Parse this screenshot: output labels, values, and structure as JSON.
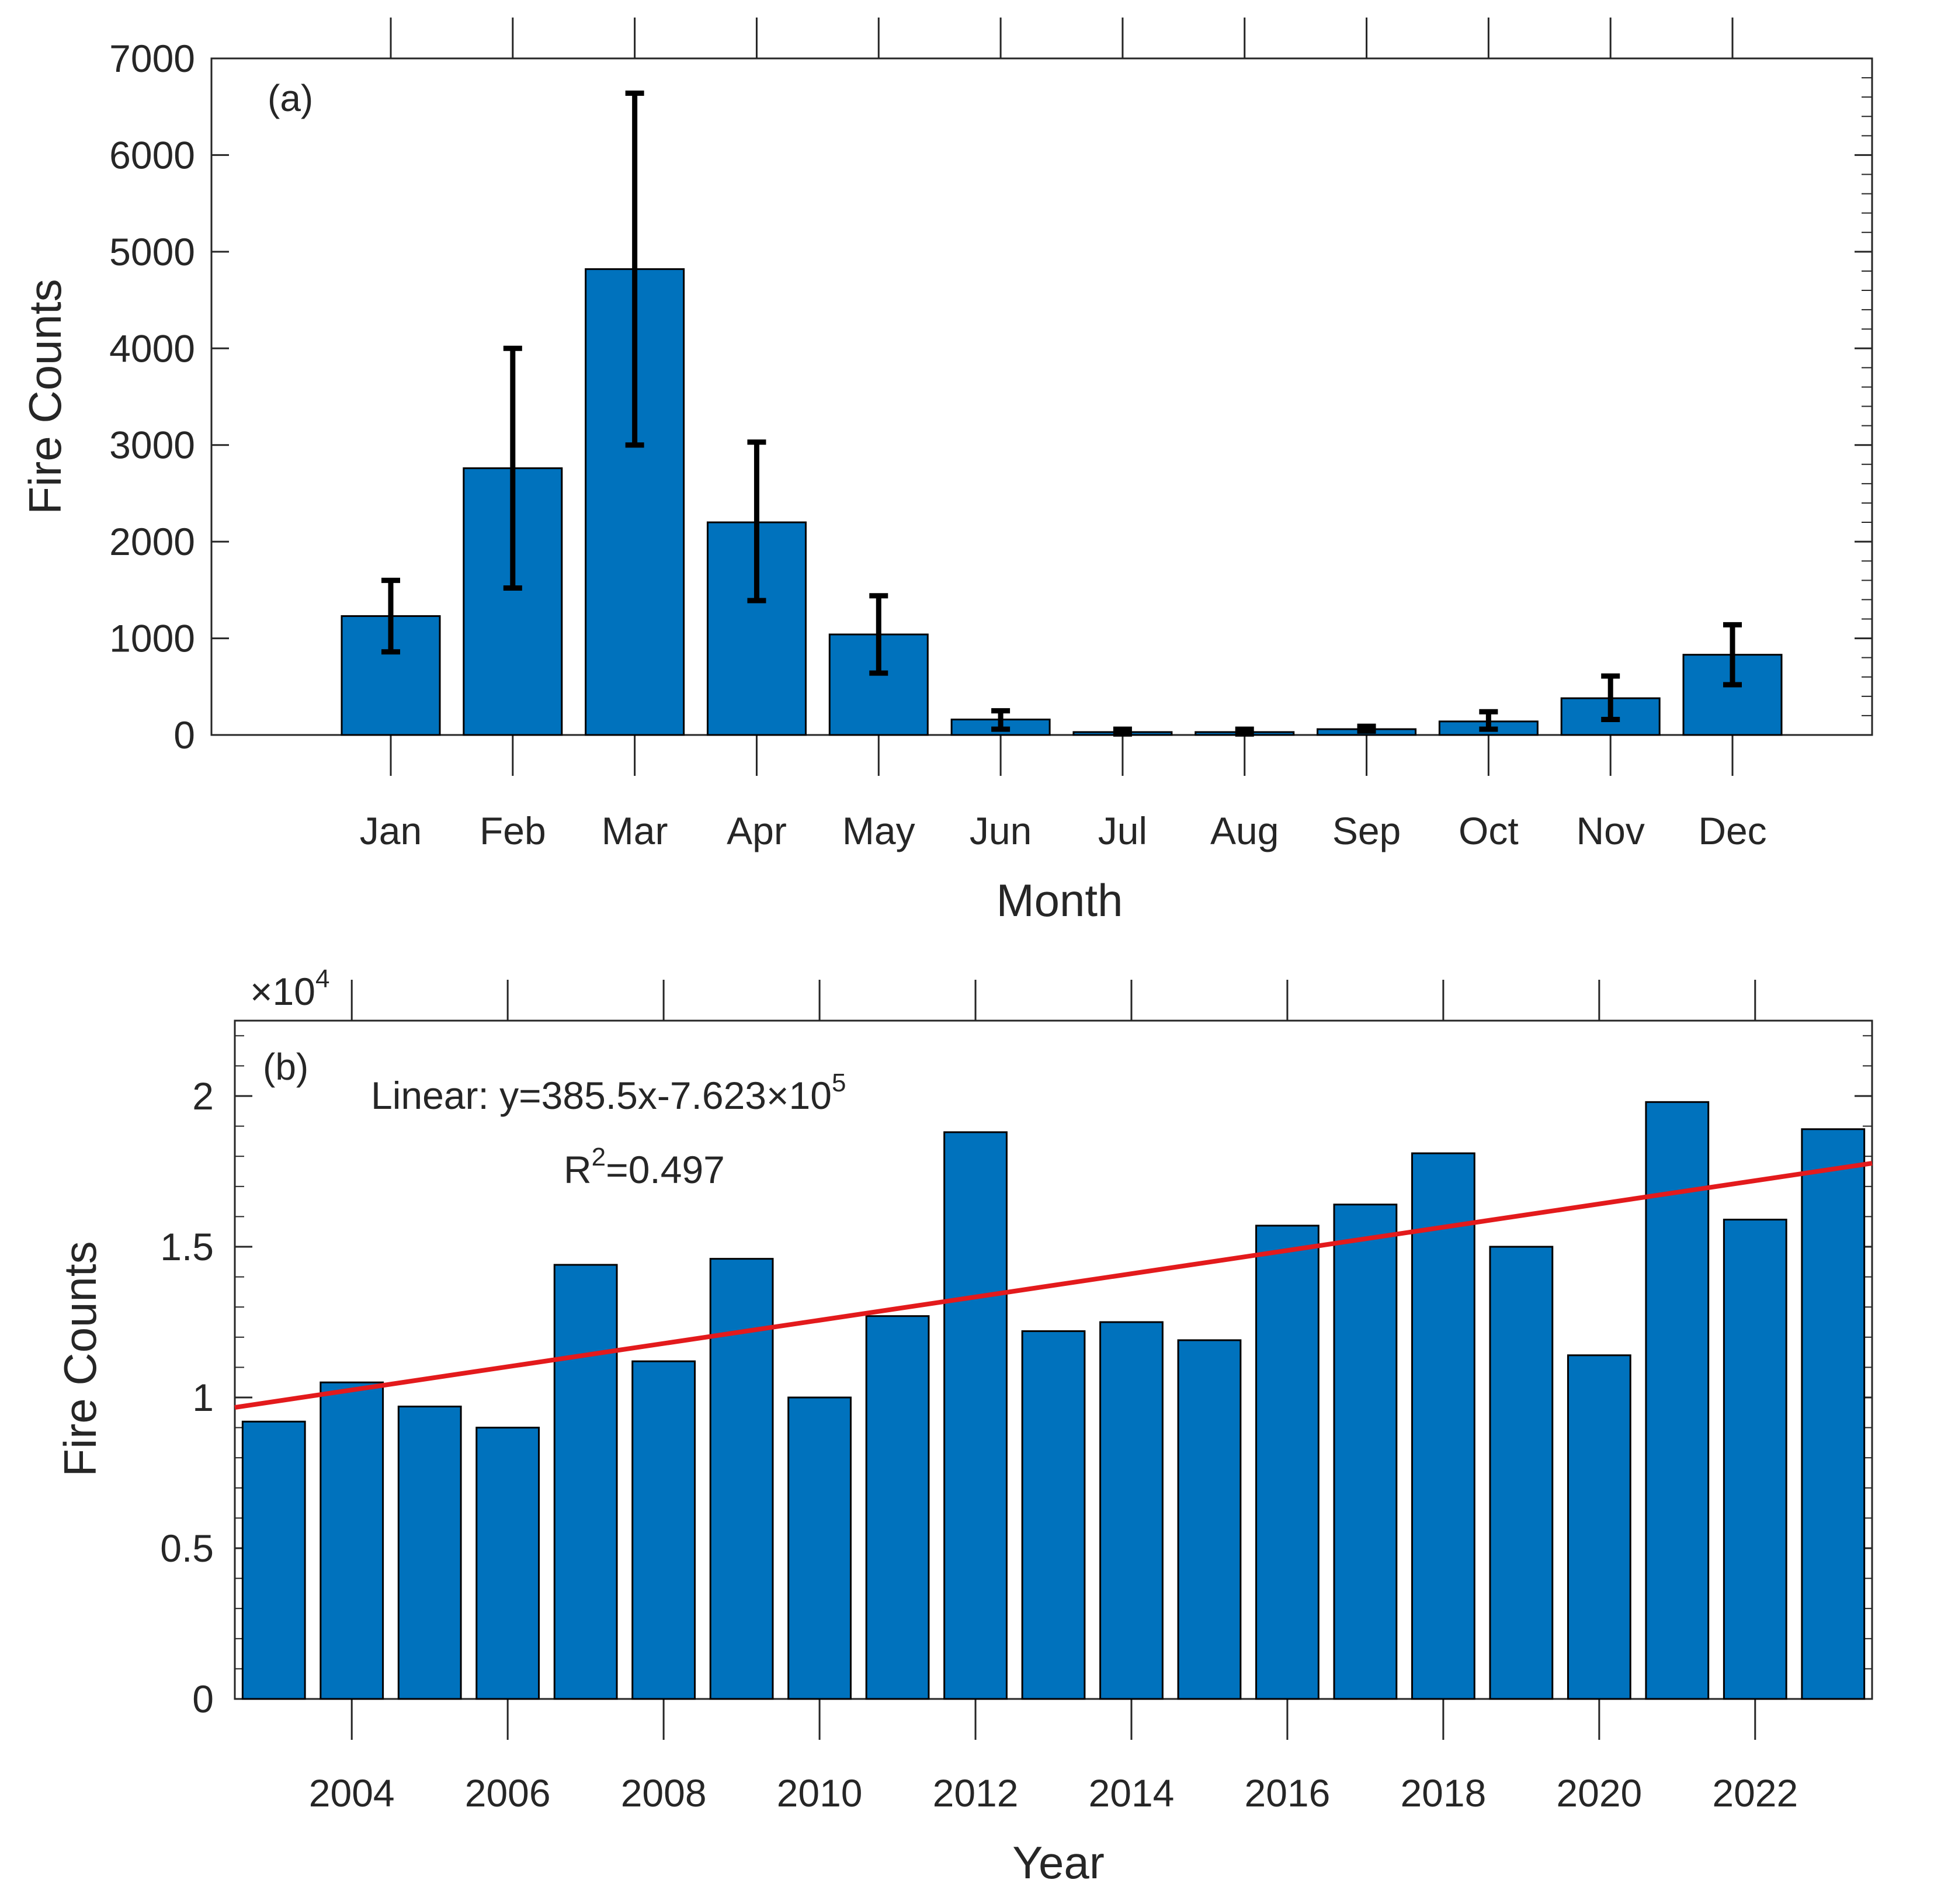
{
  "chart_data": [
    {
      "type": "bar",
      "panel_label": "(a)",
      "categories": [
        "Jan",
        "Feb",
        "Mar",
        "Apr",
        "May",
        "Jun",
        "Jul",
        "Aug",
        "Sep",
        "Oct",
        "Nov",
        "Dec"
      ],
      "values": [
        1230,
        2760,
        4820,
        2200,
        1040,
        160,
        30,
        30,
        60,
        140,
        380,
        830
      ],
      "error_low": [
        860,
        1520,
        3000,
        1390,
        640,
        60,
        10,
        10,
        40,
        60,
        160,
        520
      ],
      "error_high": [
        1600,
        4000,
        6640,
        3030,
        1440,
        250,
        60,
        60,
        90,
        240,
        610,
        1140
      ],
      "xlabel": "Month",
      "ylabel": "Fire Counts",
      "ylim": [
        0,
        7000
      ],
      "yticks": [
        0,
        1000,
        2000,
        3000,
        4000,
        5000,
        6000,
        7000
      ],
      "ytick_labels": [
        "0",
        "1000",
        "2000",
        "3000",
        "4000",
        "5000",
        "6000",
        "7000"
      ],
      "bar_color": "#0072BD",
      "error_color": "#000000",
      "grid": false
    },
    {
      "type": "bar",
      "panel_label": "(b)",
      "x": [
        2003,
        2004,
        2005,
        2006,
        2007,
        2008,
        2009,
        2010,
        2011,
        2012,
        2013,
        2014,
        2015,
        2016,
        2017,
        2018,
        2019,
        2020,
        2021,
        2022,
        2023
      ],
      "values": [
        9200,
        10500,
        9700,
        9000,
        14400,
        11200,
        14600,
        10000,
        12700,
        18800,
        12200,
        12500,
        11900,
        15700,
        16400,
        18100,
        15000,
        11400,
        19800,
        15900,
        18900
      ],
      "xticks": [
        2004,
        2006,
        2008,
        2010,
        2012,
        2014,
        2016,
        2018,
        2020,
        2022
      ],
      "xtick_labels": [
        "2004",
        "2006",
        "2008",
        "2010",
        "2012",
        "2014",
        "2016",
        "2018",
        "2020",
        "2022"
      ],
      "xlim": [
        2002.5,
        2023.5
      ],
      "xlabel": "Year",
      "ylabel": "Fire Counts",
      "ylim": [
        0,
        22500
      ],
      "yticks": [
        0,
        5000,
        10000,
        15000,
        20000
      ],
      "ytick_labels": [
        "0",
        "0.5",
        "1",
        "1.5",
        "2"
      ],
      "exponent_label": {
        "base": "×10",
        "power": "4"
      },
      "bar_color": "#0072BD",
      "trend_line": {
        "color": "#E31A1C",
        "x": [
          2002.5,
          2023.5
        ],
        "y": [
          9670,
          17770
        ],
        "slope": 385.5,
        "intercept": -762300
      },
      "annotations": {
        "equation_prefix": "Linear: y=385.5x-7.623×10",
        "equation_power": "5",
        "r2_prefix": "R",
        "r2_power": "2",
        "r2_suffix": "=0.497"
      },
      "grid": false
    }
  ]
}
